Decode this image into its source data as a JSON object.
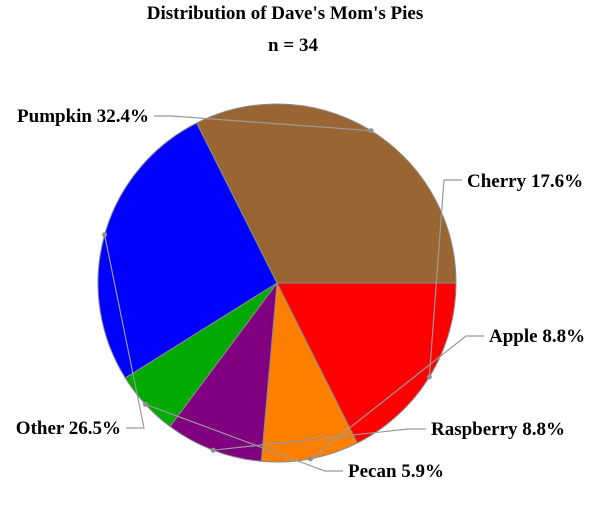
{
  "chart_data": {
    "type": "pie",
    "title": "Distribution of Dave's Mom's Pies",
    "subtitle": "n = 34",
    "slices": [
      {
        "name": "Cherry",
        "value": 17.6,
        "label": "Cherry 17.6%",
        "color": "#ff0000"
      },
      {
        "name": "Apple",
        "value": 8.8,
        "label": "Apple 8.8%",
        "color": "#ff8000"
      },
      {
        "name": "Raspberry",
        "value": 8.8,
        "label": "Raspberry 8.8%",
        "color": "#800080"
      },
      {
        "name": "Pecan",
        "value": 5.9,
        "label": "Pecan 5.9%",
        "color": "#00aa00"
      },
      {
        "name": "Other",
        "value": 26.5,
        "label": "Other 26.5%",
        "color": "#0000ff"
      },
      {
        "name": "Pumpkin",
        "value": 32.4,
        "label": "Pumpkin 32.4%",
        "color": "#996633"
      }
    ],
    "start": "3 o'clock",
    "direction": "clockwise",
    "legend": "none"
  }
}
